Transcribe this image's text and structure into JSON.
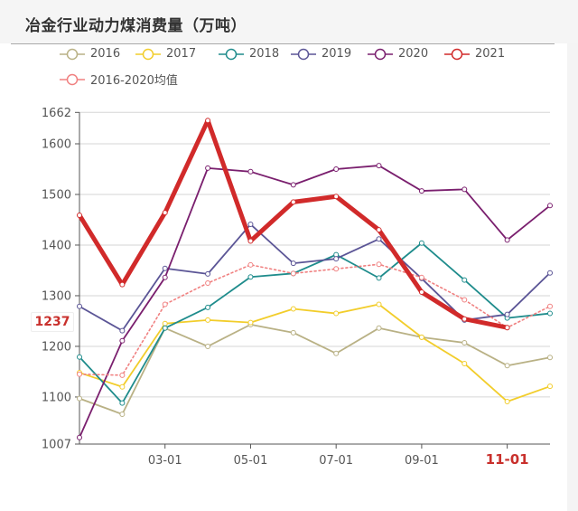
{
  "header": {
    "title": "冶金行业动力煤消费量（万吨）"
  },
  "legend": [
    {
      "label": "2016",
      "color": "#b9b185"
    },
    {
      "label": "2017",
      "color": "#f2cd2b"
    },
    {
      "label": "2018",
      "color": "#1f8c8c"
    },
    {
      "label": "2019",
      "color": "#5b5596"
    },
    {
      "label": "2020",
      "color": "#7a1f6e"
    },
    {
      "label": "2021",
      "color": "#d12a2a"
    },
    {
      "label": "2016-2020均值",
      "color": "#f08080"
    }
  ],
  "axis": {
    "y_ticks": [
      "1662",
      "1600",
      "1500",
      "1400",
      "1300",
      "1200",
      "1100",
      "1007"
    ],
    "x_ticks": [
      "03-01",
      "05-01",
      "07-01",
      "09-01",
      "11-01"
    ],
    "highlight_y_label": "1237",
    "highlight_x_label": "11-01"
  },
  "chart_data": {
    "type": "line",
    "title": "冶金行业动力煤消费量（万吨）",
    "xlabel": "",
    "ylabel": "万吨",
    "x": [
      "01-01",
      "02-01",
      "03-01",
      "04-01",
      "05-01",
      "06-01",
      "07-01",
      "08-01",
      "09-01",
      "10-01",
      "11-01",
      "12-01"
    ],
    "ylim": [
      1007,
      1662
    ],
    "grid": true,
    "legend_position": "top",
    "series": [
      {
        "name": "2016",
        "color": "#b9b185",
        "values": [
          1097,
          1066,
          1236,
          1200,
          1243,
          1227,
          1186,
          1236,
          1218,
          1207,
          1162,
          1178
        ]
      },
      {
        "name": "2017",
        "color": "#f2cd2b",
        "values": [
          1148,
          1120,
          1245,
          1252,
          1247,
          1274,
          1265,
          1283,
          1218,
          1166,
          1091,
          1121
        ]
      },
      {
        "name": "2018",
        "color": "#1f8c8c",
        "values": [
          1179,
          1088,
          1236,
          1277,
          1337,
          1344,
          1381,
          1335,
          1404,
          1331,
          1256,
          1265
        ]
      },
      {
        "name": "2019",
        "color": "#5b5596",
        "values": [
          1279,
          1231,
          1354,
          1343,
          1441,
          1364,
          1373,
          1412,
          1334,
          1252,
          1263,
          1345
        ]
      },
      {
        "name": "2020",
        "color": "#7a1f6e",
        "values": [
          1020,
          1211,
          1336,
          1552,
          1545,
          1519,
          1550,
          1557,
          1507,
          1510,
          1410,
          1478
        ]
      },
      {
        "name": "2021",
        "color": "#d12a2a",
        "values": [
          1459,
          1322,
          1464,
          1646,
          1408,
          1485,
          1496,
          1430,
          1307,
          1254,
          1237,
          null
        ]
      },
      {
        "name": "2016-2020均值",
        "color": "#f08080",
        "dashed": true,
        "values": [
          1145,
          1143,
          1283,
          1325,
          1361,
          1344,
          1353,
          1362,
          1336,
          1292,
          1237,
          1279
        ]
      }
    ],
    "annotations": [
      {
        "type": "axis-pointer",
        "x": "11-01",
        "y": 1237
      }
    ]
  }
}
